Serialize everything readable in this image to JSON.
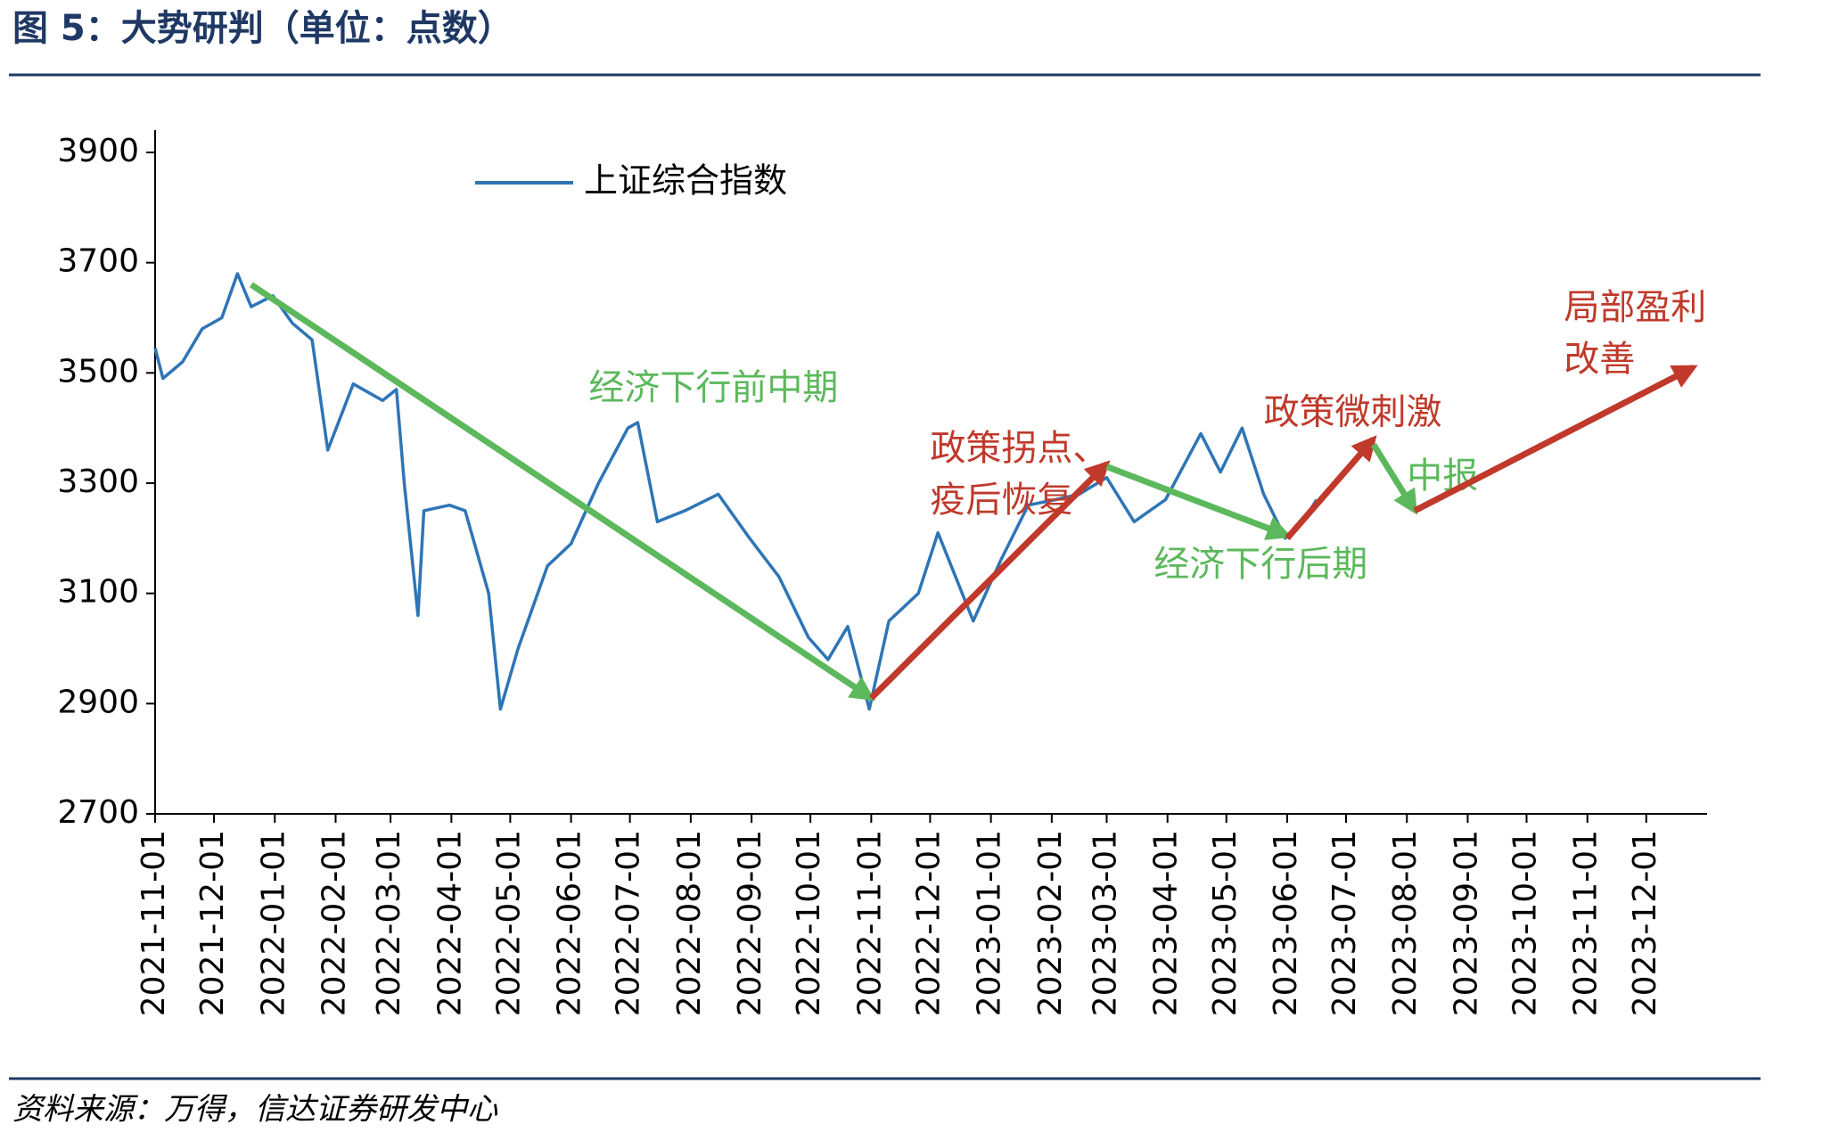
{
  "chart_data": {
    "type": "line",
    "title": "图 5：大势研判（单位：点数）",
    "source": "资料来源：万得，信达证券研发中心",
    "x": [
      "2021-11-01",
      "2021-11-05",
      "2021-11-15",
      "2021-11-25",
      "2021-12-05",
      "2021-12-13",
      "2021-12-20",
      "2021-12-31",
      "2022-01-10",
      "2022-01-20",
      "2022-01-28",
      "2022-02-10",
      "2022-02-25",
      "2022-03-04",
      "2022-03-08",
      "2022-03-15",
      "2022-03-18",
      "2022-03-31",
      "2022-04-08",
      "2022-04-20",
      "2022-04-26",
      "2022-05-05",
      "2022-05-20",
      "2022-06-01",
      "2022-06-15",
      "2022-06-30",
      "2022-07-05",
      "2022-07-15",
      "2022-07-29",
      "2022-08-15",
      "2022-08-31",
      "2022-09-15",
      "2022-09-30",
      "2022-10-10",
      "2022-10-20",
      "2022-10-31",
      "2022-11-10",
      "2022-11-25",
      "2022-12-05",
      "2022-12-23",
      "2023-01-06",
      "2023-01-20",
      "2023-02-03",
      "2023-02-15",
      "2023-03-01",
      "2023-03-15",
      "2023-03-31",
      "2023-04-18",
      "2023-04-28",
      "2023-05-09",
      "2023-05-20",
      "2023-05-31",
      "2023-06-09",
      "2023-06-16"
    ],
    "series": [
      {
        "name": "上证综合指数",
        "color": "#2e75b6",
        "values": [
          3545,
          3490,
          3520,
          3580,
          3600,
          3680,
          3620,
          3640,
          3590,
          3560,
          3360,
          3480,
          3450,
          3470,
          3300,
          3060,
          3250,
          3260,
          3250,
          3100,
          2890,
          3000,
          3150,
          3190,
          3300,
          3400,
          3410,
          3230,
          3250,
          3280,
          3200,
          3130,
          3020,
          2980,
          3040,
          2890,
          3050,
          3100,
          3210,
          3050,
          3160,
          3260,
          3270,
          3280,
          3310,
          3230,
          3270,
          3390,
          3320,
          3400,
          3280,
          3200,
          3230,
          3270
        ]
      }
    ],
    "xlim": [
      "2021-11-01",
      "2024-01-01"
    ],
    "xticks": [
      "2021-11-01",
      "2021-12-01",
      "2022-01-01",
      "2022-02-01",
      "2022-03-01",
      "2022-04-01",
      "2022-05-01",
      "2022-06-01",
      "2022-07-01",
      "2022-08-01",
      "2022-09-01",
      "2022-10-01",
      "2022-11-01",
      "2022-12-01",
      "2023-01-01",
      "2023-02-01",
      "2023-03-01",
      "2023-04-01",
      "2023-05-01",
      "2023-06-01",
      "2023-07-01",
      "2023-08-01",
      "2023-09-01",
      "2023-10-01",
      "2023-11-01",
      "2023-12-01"
    ],
    "ylim": [
      2700,
      3900
    ],
    "yticks": [
      2700,
      2900,
      3100,
      3300,
      3500,
      3700,
      3900
    ],
    "annotations": [
      {
        "lines": [
          "经济下行前中期"
        ],
        "color": "#5cb85c",
        "at": [
          "2022-06-10",
          3470
        ],
        "from": [
          "2021-12-20",
          3660
        ],
        "to": [
          "2022-11-01",
          2910
        ]
      },
      {
        "lines": [
          "政策拐点、",
          "疫后恢复"
        ],
        "color": "#c0392b",
        "at": [
          "2022-12-01",
          3360
        ],
        "from": [
          "2022-11-01",
          2910
        ],
        "to": [
          "2023-03-01",
          3335
        ]
      },
      {
        "lines": [
          "经济下行后期"
        ],
        "color": "#5cb85c",
        "at": [
          "2023-03-25",
          3150
        ],
        "from": [
          "2023-03-01",
          3330
        ],
        "to": [
          "2023-06-01",
          3205
        ]
      },
      {
        "lines": [
          "政策微刺激"
        ],
        "color": "#c0392b",
        "at": [
          "2023-05-20",
          3425
        ],
        "from": [
          "2023-06-01",
          3200
        ],
        "to": [
          "2023-07-15",
          3380
        ]
      },
      {
        "lines": [
          "中报"
        ],
        "color": "#5cb85c",
        "at": [
          "2023-08-01",
          3310
        ],
        "from": [
          "2023-07-15",
          3370
        ],
        "to": [
          "2023-08-05",
          3250
        ]
      },
      {
        "lines": [
          "局部盈利",
          "改善"
        ],
        "color": "#c0392b",
        "at": [
          "2023-10-20",
          3615
        ],
        "from": [
          "2023-08-05",
          3250
        ],
        "to": [
          "2023-12-25",
          3510
        ]
      }
    ]
  }
}
